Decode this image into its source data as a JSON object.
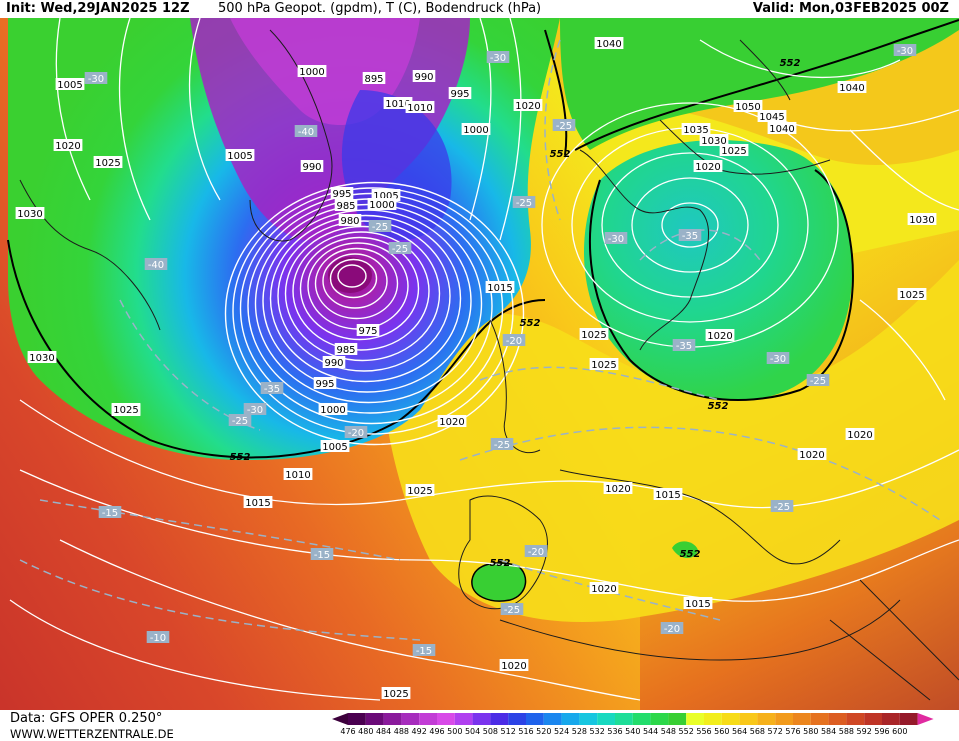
{
  "header": {
    "init": "Init: Wed,29JAN2025 12Z",
    "title": "500 hPa Geopot. (gpdm), T (C), Bodendruck (hPa)",
    "valid": "Valid: Mon,03FEB2025 00Z"
  },
  "footer": {
    "source": "Data: GFS OPER 0.250°",
    "site": "WWW.WETTERZENTRALE.DE"
  },
  "colorbar": {
    "ticks": [
      "476",
      "480",
      "484",
      "488",
      "492",
      "496",
      "500",
      "504",
      "508",
      "512",
      "516",
      "520",
      "524",
      "528",
      "532",
      "536",
      "540",
      "544",
      "548",
      "552",
      "556",
      "560",
      "564",
      "568",
      "572",
      "576",
      "580",
      "584",
      "588",
      "592",
      "596",
      "600"
    ],
    "colors": [
      "#4a0050",
      "#6a0a78",
      "#8a1a9c",
      "#a62cbd",
      "#c23cd6",
      "#d84ae8",
      "#b040f0",
      "#7a33ee",
      "#4b2ce6",
      "#2c43e6",
      "#1f63ec",
      "#1a86ef",
      "#17a8ec",
      "#16c6e0",
      "#18d9c0",
      "#1ede98",
      "#22dd6c",
      "#2cd84a",
      "#38cf33",
      "#e9ff2a",
      "#f2ee1d",
      "#f7dc18",
      "#f9c81a",
      "#f6b11b",
      "#f29b1c",
      "#ec861e",
      "#e57220",
      "#dc5d22",
      "#cf4825",
      "#bf3527",
      "#a92528",
      "#951a2a"
    ],
    "arrow_left_color": "#3c003c",
    "arrow_right_color": "#e02aa0"
  },
  "pressure_labels": [
    "1005",
    "1020",
    "1025",
    "1030",
    "1030",
    "1025",
    "1000",
    "1005",
    "990",
    "995",
    "985",
    "980",
    "975",
    "985",
    "990",
    "995",
    "1000",
    "1005",
    "1010",
    "1015",
    "1025",
    "1025",
    "895",
    "990",
    "995",
    "1010",
    "1010",
    "1000",
    "1005",
    "1000",
    "1020",
    "1015",
    "1025",
    "1040",
    "1040",
    "1050",
    "1045",
    "1040",
    "1035",
    "1030",
    "1025",
    "1020",
    "1030",
    "1020",
    "1025",
    "1020",
    "1025",
    "1020",
    "1020",
    "1015",
    "1020",
    "1015",
    "1020",
    "1020",
    "1025"
  ],
  "temperature_labels": [
    "-30",
    "-40",
    "-40",
    "-35",
    "-30",
    "-30",
    "-25",
    "-25",
    "-25",
    "-20",
    "-20",
    "-35",
    "-30",
    "-35",
    "-25",
    "-25",
    "-30",
    "-30",
    "-25",
    "-20",
    "-25",
    "-25",
    "-15",
    "-15",
    "-10",
    "-15",
    "-20",
    "-25"
  ],
  "height_labels": [
    "552",
    "552",
    "552",
    "552",
    "552",
    "552",
    "552"
  ],
  "colors": {
    "cold_core": "#7a0a8a",
    "contour": "#ffffff",
    "isotherm": "#9ab2c8",
    "boundary": "#1c1c1c",
    "line552": "#000000"
  }
}
